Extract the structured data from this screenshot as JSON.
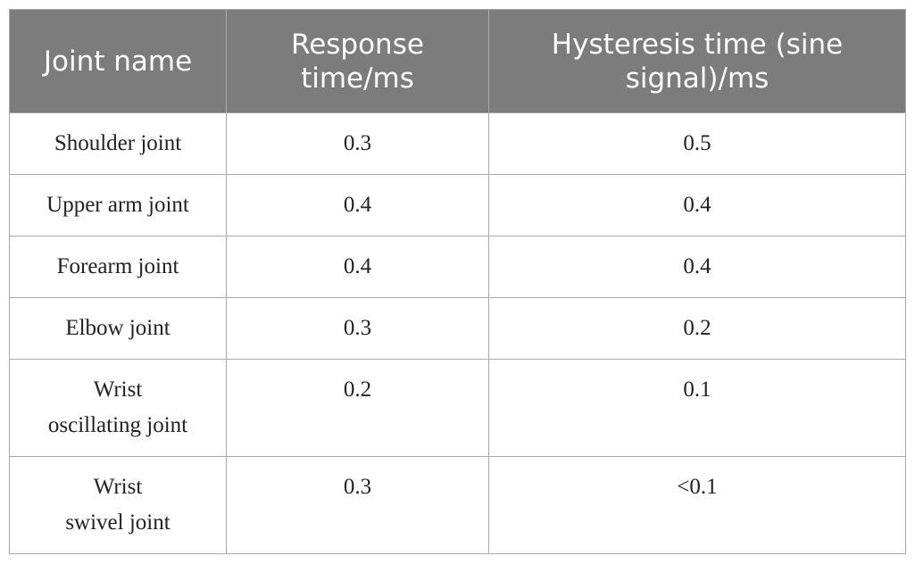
{
  "table": {
    "headers": [
      {
        "line1": "Joint name",
        "line2": ""
      },
      {
        "line1": "Response",
        "line2": "time/ms"
      },
      {
        "line1": "Hysteresis time (sine",
        "line2": "signal)/ms"
      }
    ],
    "rows": [
      {
        "name_line1": "Shoulder joint",
        "name_line2": "",
        "response": "0.3",
        "hysteresis": "0.5"
      },
      {
        "name_line1": "Upper arm joint",
        "name_line2": "",
        "response": "0.4",
        "hysteresis": "0.4"
      },
      {
        "name_line1": "Forearm joint",
        "name_line2": "",
        "response": "0.4",
        "hysteresis": "0.4"
      },
      {
        "name_line1": "Elbow joint",
        "name_line2": "",
        "response": "0.3",
        "hysteresis": "0.2"
      },
      {
        "name_line1": "Wrist",
        "name_line2": "oscillating joint",
        "response": "0.2",
        "hysteresis": "0.1"
      },
      {
        "name_line1": "Wrist",
        "name_line2": "swivel joint",
        "response": "0.3",
        "hysteresis": "<0.1"
      }
    ]
  }
}
